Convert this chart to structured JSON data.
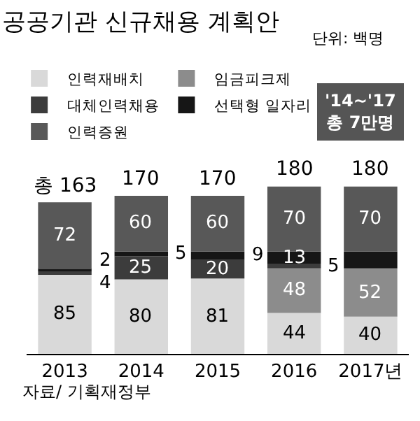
{
  "chart_data": {
    "type": "bar",
    "stacked": true,
    "title": "공공기관 신규채용 계획안",
    "subtitle": "단위: 백명",
    "categories": [
      "2013",
      "2014",
      "2015",
      "2016",
      "2017년"
    ],
    "series": [
      {
        "name": "인력재배치",
        "color": "#d9d9d9",
        "values": [
          85,
          80,
          81,
          44,
          40
        ],
        "value_labels": [
          "85",
          "80",
          "81",
          "44",
          "40"
        ]
      },
      {
        "name": "임금피크제",
        "color": "#8c8c8c",
        "values": [
          null,
          null,
          null,
          48,
          52
        ],
        "value_labels": [
          null,
          null,
          null,
          "48",
          "52"
        ]
      },
      {
        "name": "대체인력채용",
        "color": "#3c3c3c",
        "values": [
          4,
          25,
          20,
          5,
          null
        ],
        "value_labels": [
          "4",
          "25",
          "20",
          "5",
          null
        ]
      },
      {
        "name": "선택형 일자리",
        "color": "#161616",
        "values": [
          2,
          5,
          9,
          13,
          18
        ],
        "value_labels": [
          "2",
          "5",
          "9",
          "13",
          null
        ]
      },
      {
        "name": "인력증원",
        "color": "#585858",
        "values": [
          72,
          60,
          60,
          70,
          70
        ],
        "value_labels": [
          "72",
          "60",
          "60",
          "70",
          "70"
        ]
      }
    ],
    "totals": [
      "총 163",
      "170",
      "170",
      "180",
      "180"
    ],
    "ylim": [
      0,
      185
    ],
    "tick_labels": "x",
    "legend": "top left",
    "annotations": [
      "'14~'17\n총 7만명",
      "자료/ 기획재정부"
    ]
  }
}
